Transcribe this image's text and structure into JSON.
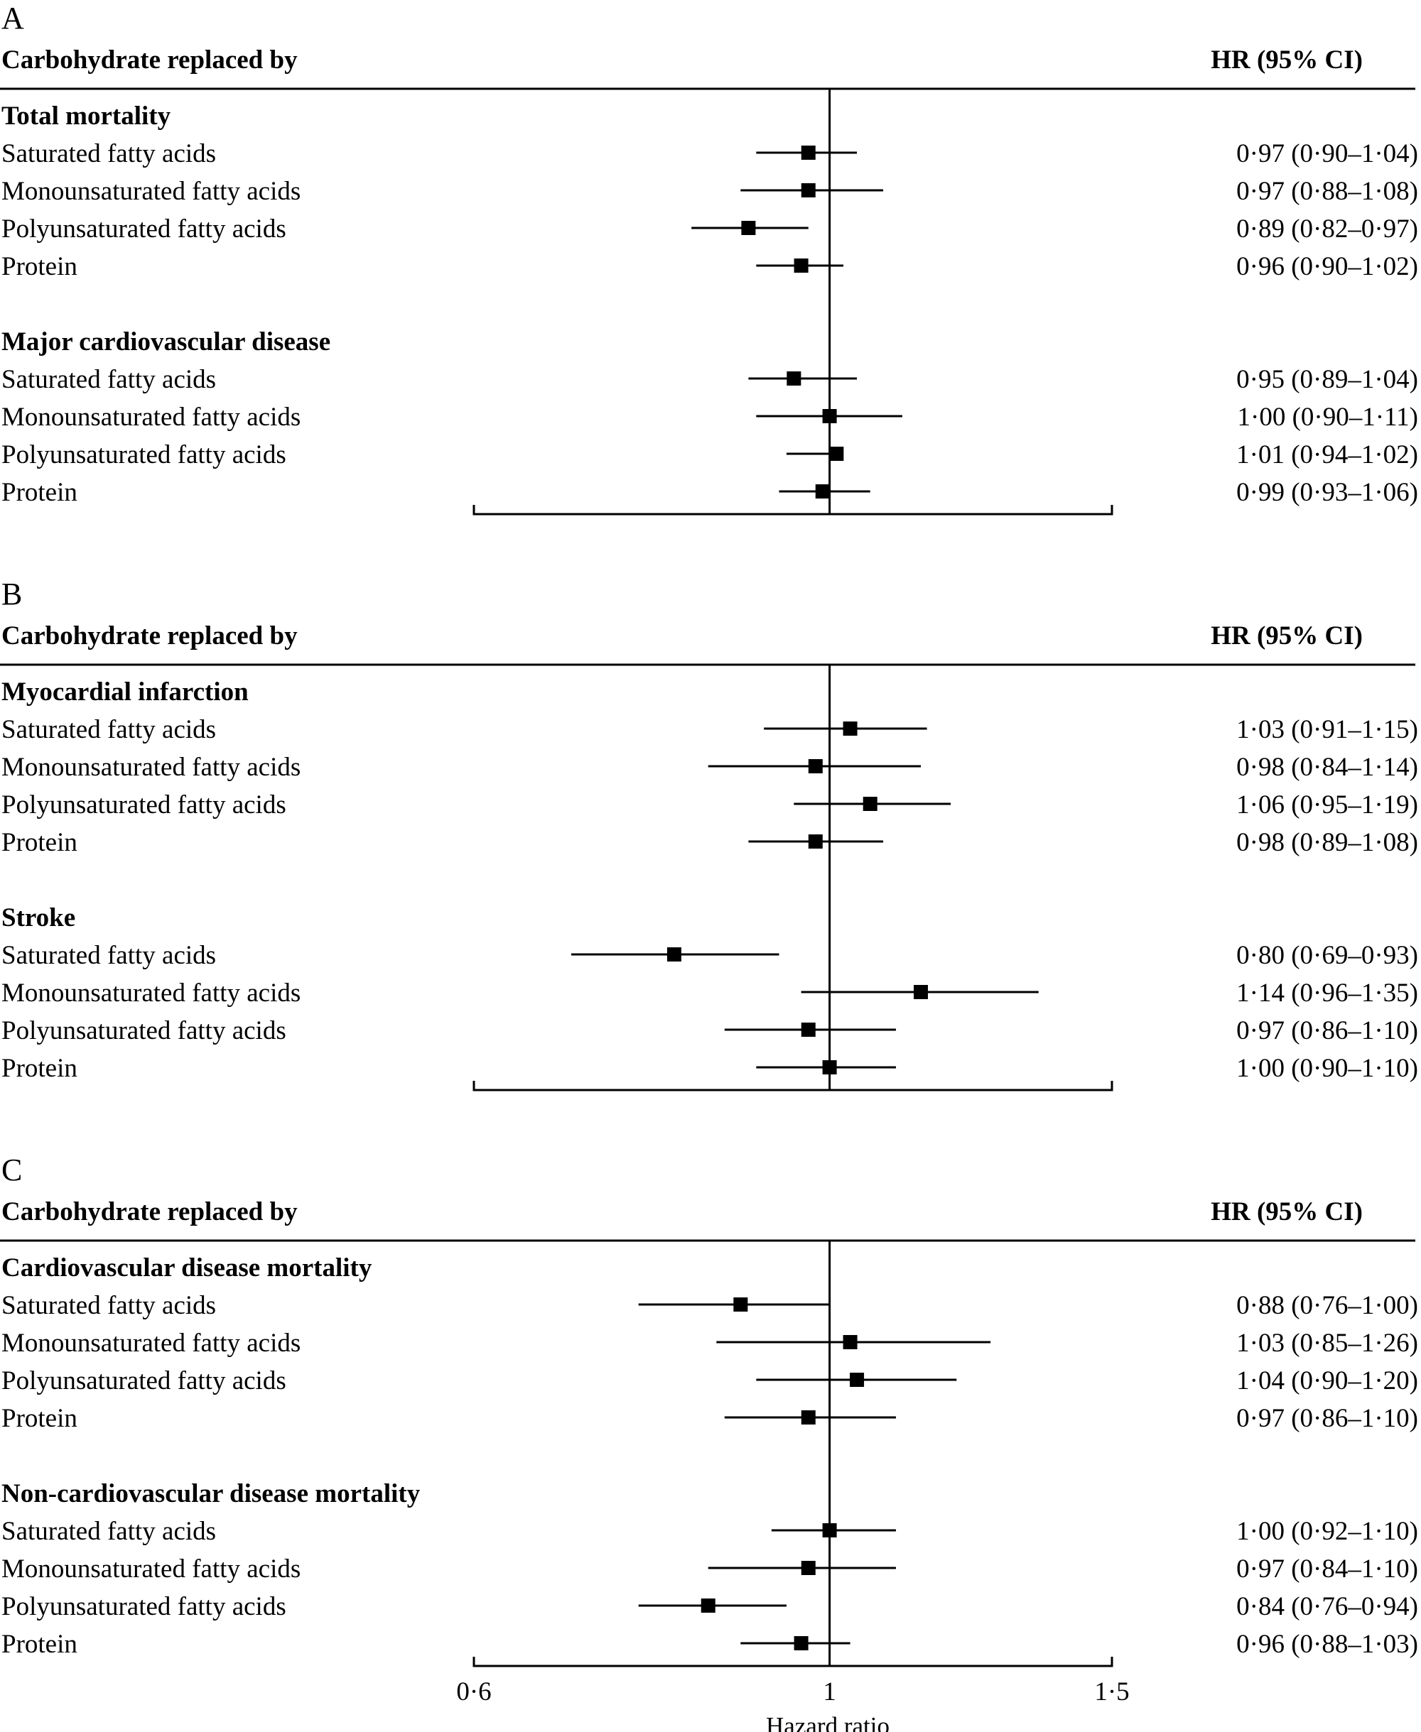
{
  "chart_data": {
    "type": "forest",
    "xlabel": "Hazard ratio",
    "xlim": [
      0.6,
      1.5
    ],
    "scale": "log",
    "ticks": [
      "0·6",
      "1",
      "1·5"
    ],
    "tick_values": [
      0.6,
      1,
      1.5
    ],
    "reference_line": 1,
    "panels": [
      {
        "letter": "A",
        "left_header": "Carbohydrate replaced by",
        "right_header": "HR (95% CI)",
        "groups": [
          {
            "outcome": "Total mortality",
            "rows": [
              {
                "label": "Saturated fatty acids",
                "hr": 0.97,
                "lo": 0.9,
                "hi": 1.04,
                "text": "0·97 (0·90–1·04)"
              },
              {
                "label": "Monounsaturated fatty acids",
                "hr": 0.97,
                "lo": 0.88,
                "hi": 1.08,
                "text": "0·97 (0·88–1·08)"
              },
              {
                "label": "Polyunsaturated fatty acids",
                "hr": 0.89,
                "lo": 0.82,
                "hi": 0.97,
                "text": "0·89 (0·82–0·97)"
              },
              {
                "label": "Protein",
                "hr": 0.96,
                "lo": 0.9,
                "hi": 1.02,
                "text": "0·96 (0·90–1·02)"
              }
            ]
          },
          {
            "outcome": "Major cardiovascular disease",
            "rows": [
              {
                "label": "Saturated fatty acids",
                "hr": 0.95,
                "lo": 0.89,
                "hi": 1.04,
                "text": "0·95 (0·89–1·04)"
              },
              {
                "label": "Monounsaturated fatty acids",
                "hr": 1.0,
                "lo": 0.9,
                "hi": 1.11,
                "text": "1·00 (0·90–1·11)"
              },
              {
                "label": "Polyunsaturated fatty acids",
                "hr": 1.01,
                "lo": 0.94,
                "hi": 1.02,
                "text": "1·01 (0·94–1·02)"
              },
              {
                "label": "Protein",
                "hr": 0.99,
                "lo": 0.93,
                "hi": 1.06,
                "text": "0·99 (0·93–1·06)"
              }
            ]
          }
        ]
      },
      {
        "letter": "B",
        "left_header": "Carbohydrate replaced by",
        "right_header": "HR (95% CI)",
        "groups": [
          {
            "outcome": "Myocardial infarction",
            "rows": [
              {
                "label": "Saturated fatty acids",
                "hr": 1.03,
                "lo": 0.91,
                "hi": 1.15,
                "text": "1·03 (0·91–1·15)"
              },
              {
                "label": "Monounsaturated fatty acids",
                "hr": 0.98,
                "lo": 0.84,
                "hi": 1.14,
                "text": "0·98 (0·84–1·14)"
              },
              {
                "label": "Polyunsaturated fatty acids",
                "hr": 1.06,
                "lo": 0.95,
                "hi": 1.19,
                "text": "1·06 (0·95–1·19)"
              },
              {
                "label": "Protein",
                "hr": 0.98,
                "lo": 0.89,
                "hi": 1.08,
                "text": "0·98 (0·89–1·08)"
              }
            ]
          },
          {
            "outcome": "Stroke",
            "rows": [
              {
                "label": "Saturated fatty acids",
                "hr": 0.8,
                "lo": 0.69,
                "hi": 0.93,
                "text": "0·80 (0·69–0·93)"
              },
              {
                "label": "Monounsaturated fatty acids",
                "hr": 1.14,
                "lo": 0.96,
                "hi": 1.35,
                "text": "1·14 (0·96–1·35)"
              },
              {
                "label": "Polyunsaturated fatty acids",
                "hr": 0.97,
                "lo": 0.86,
                "hi": 1.1,
                "text": "0·97 (0·86–1·10)"
              },
              {
                "label": "Protein",
                "hr": 1.0,
                "lo": 0.9,
                "hi": 1.1,
                "text": "1·00 (0·90–1·10)"
              }
            ]
          }
        ]
      },
      {
        "letter": "C",
        "left_header": "Carbohydrate replaced by",
        "right_header": "HR (95% CI)",
        "groups": [
          {
            "outcome": "Cardiovascular disease mortality",
            "rows": [
              {
                "label": "Saturated fatty acids",
                "hr": 0.88,
                "lo": 0.76,
                "hi": 1.0,
                "text": "0·88 (0·76–1·00)"
              },
              {
                "label": "Monounsaturated fatty acids",
                "hr": 1.03,
                "lo": 0.85,
                "hi": 1.26,
                "text": "1·03 (0·85–1·26)"
              },
              {
                "label": "Polyunsaturated fatty acids",
                "hr": 1.04,
                "lo": 0.9,
                "hi": 1.2,
                "text": "1·04 (0·90–1·20)"
              },
              {
                "label": "Protein",
                "hr": 0.97,
                "lo": 0.86,
                "hi": 1.1,
                "text": "0·97 (0·86–1·10)"
              }
            ]
          },
          {
            "outcome": "Non-cardiovascular disease mortality",
            "rows": [
              {
                "label": "Saturated fatty acids",
                "hr": 1.0,
                "lo": 0.92,
                "hi": 1.1,
                "text": "1·00 (0·92–1·10)"
              },
              {
                "label": "Monounsaturated fatty acids",
                "hr": 0.97,
                "lo": 0.84,
                "hi": 1.1,
                "text": "0·97 (0·84–1·10)"
              },
              {
                "label": "Polyunsaturated fatty acids",
                "hr": 0.84,
                "lo": 0.76,
                "hi": 0.94,
                "text": "0·84 (0·76–0·94)"
              },
              {
                "label": "Protein",
                "hr": 0.96,
                "lo": 0.88,
                "hi": 1.03,
                "text": "0·96 (0·88–1·03)"
              }
            ]
          }
        ]
      }
    ]
  }
}
